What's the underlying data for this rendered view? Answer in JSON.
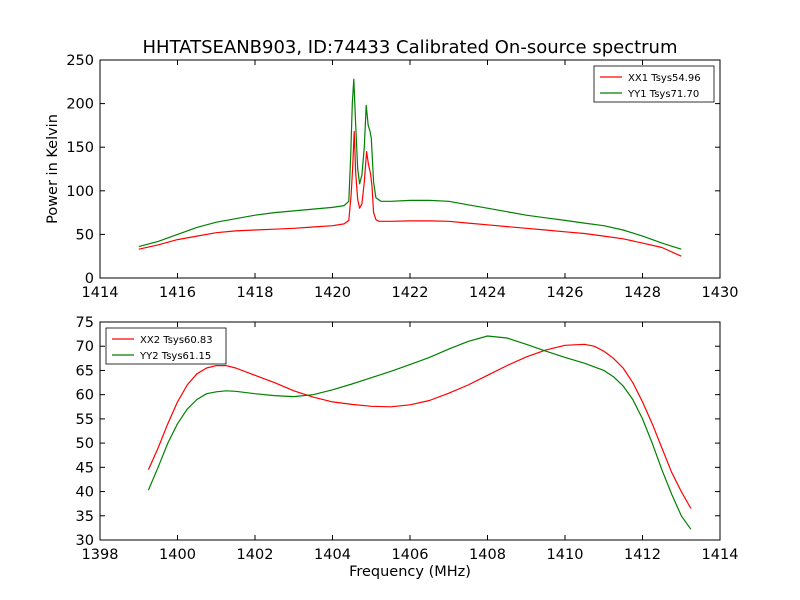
{
  "chart_data": {
    "title": "HHTATSEANB903, ID:74433 Calibrated On-source spectrum",
    "ylabel": "Power in Kelvin",
    "xlabel": "Frequency (MHz)",
    "panels": [
      {
        "type": "line",
        "xlim": [
          1414,
          1430
        ],
        "ylim": [
          0,
          250
        ],
        "xticks": [
          "1414",
          "1416",
          "1418",
          "1420",
          "1422",
          "1424",
          "1426",
          "1428",
          "1430"
        ],
        "yticks": [
          "0",
          "50",
          "100",
          "150",
          "200",
          "250"
        ],
        "legend_position": "top-right",
        "grid": false,
        "series": [
          {
            "name": "XX1 Tsys54.96",
            "color": "#ff0000",
            "points": [
              [
                1415.0,
                33
              ],
              [
                1415.5,
                38
              ],
              [
                1416.0,
                44
              ],
              [
                1416.5,
                48
              ],
              [
                1417.0,
                52
              ],
              [
                1417.5,
                54
              ],
              [
                1418.0,
                55
              ],
              [
                1418.5,
                56
              ],
              [
                1419.0,
                57
              ],
              [
                1419.5,
                58.5
              ],
              [
                1420.0,
                60
              ],
              [
                1420.3,
                62
              ],
              [
                1420.42,
                66
              ],
              [
                1420.48,
                95
              ],
              [
                1420.52,
                125
              ],
              [
                1420.56,
                168
              ],
              [
                1420.6,
                120
              ],
              [
                1420.65,
                90
              ],
              [
                1420.7,
                80
              ],
              [
                1420.76,
                85
              ],
              [
                1420.82,
                110
              ],
              [
                1420.88,
                145
              ],
              [
                1420.93,
                130
              ],
              [
                1420.98,
                120
              ],
              [
                1421.02,
                105
              ],
              [
                1421.06,
                75
              ],
              [
                1421.12,
                67
              ],
              [
                1421.2,
                65
              ],
              [
                1421.5,
                65
              ],
              [
                1422.0,
                65.5
              ],
              [
                1422.5,
                65.5
              ],
              [
                1423.0,
                65
              ],
              [
                1423.5,
                63
              ],
              [
                1424.0,
                61
              ],
              [
                1424.5,
                59
              ],
              [
                1425.0,
                57
              ],
              [
                1425.5,
                55
              ],
              [
                1426.0,
                53
              ],
              [
                1426.5,
                51
              ],
              [
                1427.0,
                48
              ],
              [
                1427.5,
                45
              ],
              [
                1428.0,
                40
              ],
              [
                1428.5,
                35
              ],
              [
                1429.0,
                25
              ]
            ]
          },
          {
            "name": "YY1 Tsys71.70",
            "color": "#008000",
            "points": [
              [
                1415.0,
                36
              ],
              [
                1415.5,
                42
              ],
              [
                1416.0,
                50
              ],
              [
                1416.5,
                58
              ],
              [
                1417.0,
                64
              ],
              [
                1417.5,
                68
              ],
              [
                1418.0,
                72
              ],
              [
                1418.5,
                75
              ],
              [
                1419.0,
                77
              ],
              [
                1419.5,
                79
              ],
              [
                1420.0,
                81
              ],
              [
                1420.3,
                83
              ],
              [
                1420.42,
                88
              ],
              [
                1420.47,
                140
              ],
              [
                1420.51,
                200
              ],
              [
                1420.55,
                228
              ],
              [
                1420.6,
                175
              ],
              [
                1420.65,
                125
              ],
              [
                1420.7,
                108
              ],
              [
                1420.76,
                118
              ],
              [
                1420.82,
                150
              ],
              [
                1420.87,
                198
              ],
              [
                1420.92,
                175
              ],
              [
                1420.97,
                168
              ],
              [
                1421.0,
                160
              ],
              [
                1421.06,
                110
              ],
              [
                1421.12,
                92
              ],
              [
                1421.25,
                88
              ],
              [
                1421.5,
                88
              ],
              [
                1422.0,
                89
              ],
              [
                1422.5,
                89
              ],
              [
                1423.0,
                88
              ],
              [
                1423.5,
                84
              ],
              [
                1424.0,
                80
              ],
              [
                1424.5,
                76
              ],
              [
                1425.0,
                72
              ],
              [
                1425.5,
                69
              ],
              [
                1426.0,
                66
              ],
              [
                1426.5,
                63
              ],
              [
                1427.0,
                60
              ],
              [
                1427.5,
                55
              ],
              [
                1428.0,
                48
              ],
              [
                1428.5,
                40
              ],
              [
                1429.0,
                33
              ]
            ]
          }
        ]
      },
      {
        "type": "line",
        "xlim": [
          1398,
          1414
        ],
        "ylim": [
          30,
          75
        ],
        "xticks": [
          "1398",
          "1400",
          "1402",
          "1404",
          "1406",
          "1408",
          "1410",
          "1412",
          "1414"
        ],
        "yticks": [
          "30",
          "35",
          "40",
          "45",
          "50",
          "55",
          "60",
          "65",
          "70",
          "75"
        ],
        "legend_position": "top-left",
        "grid": false,
        "series": [
          {
            "name": "XX2 Tsys60.83",
            "color": "#ff0000",
            "points": [
              [
                1399.25,
                44.5
              ],
              [
                1399.5,
                49
              ],
              [
                1399.75,
                54
              ],
              [
                1400.0,
                58.5
              ],
              [
                1400.25,
                62
              ],
              [
                1400.5,
                64.3
              ],
              [
                1400.75,
                65.5
              ],
              [
                1401.0,
                66
              ],
              [
                1401.25,
                66
              ],
              [
                1401.5,
                65.5
              ],
              [
                1402.0,
                64
              ],
              [
                1402.5,
                62.5
              ],
              [
                1403.0,
                60.8
              ],
              [
                1403.5,
                59.5
              ],
              [
                1404.0,
                58.5
              ],
              [
                1404.5,
                58
              ],
              [
                1405.0,
                57.6
              ],
              [
                1405.5,
                57.5
              ],
              [
                1406.0,
                57.9
              ],
              [
                1406.5,
                58.8
              ],
              [
                1407.0,
                60.3
              ],
              [
                1407.5,
                62
              ],
              [
                1408.0,
                64
              ],
              [
                1408.5,
                66
              ],
              [
                1409.0,
                67.8
              ],
              [
                1409.5,
                69.2
              ],
              [
                1410.0,
                70.2
              ],
              [
                1410.5,
                70.4
              ],
              [
                1410.75,
                70
              ],
              [
                1411.0,
                69
              ],
              [
                1411.25,
                67.5
              ],
              [
                1411.5,
                65.5
              ],
              [
                1411.75,
                62.5
              ],
              [
                1412.0,
                58.5
              ],
              [
                1412.25,
                54
              ],
              [
                1412.5,
                49
              ],
              [
                1412.75,
                44
              ],
              [
                1413.0,
                40
              ],
              [
                1413.25,
                36.5
              ]
            ]
          },
          {
            "name": "YY2 Tsys61.15",
            "color": "#008000",
            "points": [
              [
                1399.25,
                40.3
              ],
              [
                1399.5,
                45
              ],
              [
                1399.75,
                50
              ],
              [
                1400.0,
                54
              ],
              [
                1400.25,
                57
              ],
              [
                1400.5,
                59
              ],
              [
                1400.75,
                60.2
              ],
              [
                1401.0,
                60.6
              ],
              [
                1401.25,
                60.8
              ],
              [
                1401.5,
                60.7
              ],
              [
                1402.0,
                60.2
              ],
              [
                1402.5,
                59.8
              ],
              [
                1403.0,
                59.6
              ],
              [
                1403.5,
                60
              ],
              [
                1404.0,
                61
              ],
              [
                1404.5,
                62.2
              ],
              [
                1405.0,
                63.5
              ],
              [
                1405.5,
                64.8
              ],
              [
                1406.0,
                66.2
              ],
              [
                1406.5,
                67.7
              ],
              [
                1407.0,
                69.4
              ],
              [
                1407.5,
                71
              ],
              [
                1408.0,
                72.1
              ],
              [
                1408.5,
                71.7
              ],
              [
                1409.0,
                70.4
              ],
              [
                1409.5,
                69
              ],
              [
                1410.0,
                67.7
              ],
              [
                1410.5,
                66.5
              ],
              [
                1411.0,
                65
              ],
              [
                1411.25,
                63.7
              ],
              [
                1411.5,
                61.8
              ],
              [
                1411.75,
                59
              ],
              [
                1412.0,
                55
              ],
              [
                1412.25,
                50
              ],
              [
                1412.5,
                44.5
              ],
              [
                1412.75,
                39.5
              ],
              [
                1413.0,
                35
              ],
              [
                1413.25,
                32.2
              ]
            ]
          }
        ]
      }
    ]
  }
}
